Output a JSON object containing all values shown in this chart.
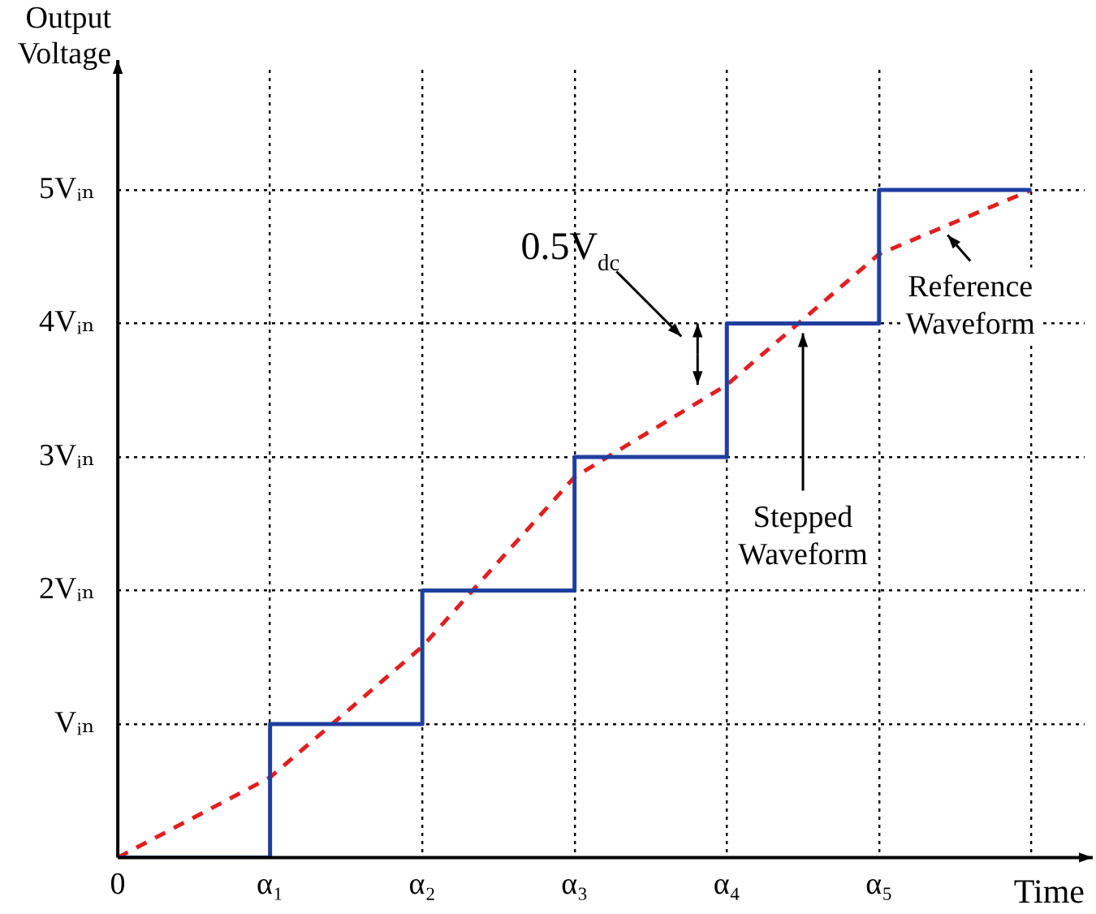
{
  "chart_data": {
    "type": "line",
    "xlabel": "Time",
    "ylabel": "Output Voltage",
    "categories": [
      "0",
      "α₁",
      "α₂",
      "α₃",
      "α₄",
      "α₅",
      null
    ],
    "ylim": [
      0,
      5.9
    ],
    "yticks": [
      {
        "value": 1,
        "label": "Vᵢₙ"
      },
      {
        "value": 2,
        "label": "2Vᵢₙ"
      },
      {
        "value": 3,
        "label": "3Vᵢₙ"
      },
      {
        "value": 4,
        "label": "4Vᵢₙ"
      },
      {
        "value": 5,
        "label": "5Vᵢₙ"
      }
    ],
    "grid": true,
    "legend": false,
    "marker": "none",
    "annotations": [
      "0.5V$_{dc}$"
    ],
    "series": [
      {
        "name": "Stepped Waveform",
        "type": "step",
        "color": "#1f3f9f",
        "line_style": "solid",
        "values": [
          0,
          1,
          2,
          3,
          4,
          5,
          5
        ]
      },
      {
        "name": "Reference Waveform",
        "type": "line",
        "color": "#e02020",
        "line_style": "dashed",
        "values": [
          0,
          0.6,
          1.58,
          2.85,
          3.54,
          4.52,
          5.0
        ]
      }
    ]
  }
}
